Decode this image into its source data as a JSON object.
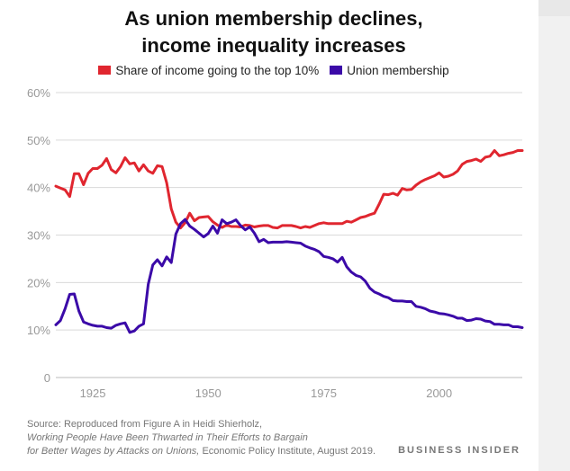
{
  "chart_data": {
    "type": "line",
    "title_line1": "As union membership declines,",
    "title_line2": "income inequality increases",
    "xlabel": "",
    "ylabel": "",
    "xlim": [
      1917,
      2018
    ],
    "ylim": [
      0,
      60
    ],
    "y_ticks": [
      0,
      10,
      20,
      30,
      40,
      50,
      60
    ],
    "y_tick_labels": [
      "0",
      "10%",
      "20%",
      "30%",
      "40%",
      "50%",
      "60%"
    ],
    "x_ticks": [
      1925,
      1950,
      1975,
      2000
    ],
    "x_tick_labels": [
      "1925",
      "1950",
      "1975",
      "2000"
    ],
    "grid": true,
    "legend_position": "top",
    "series": [
      {
        "name": "Share of income going to the top 10%",
        "color": "#e0262f",
        "x": [
          1917,
          1918,
          1919,
          1920,
          1921,
          1922,
          1923,
          1924,
          1925,
          1926,
          1927,
          1928,
          1929,
          1930,
          1931,
          1932,
          1933,
          1934,
          1935,
          1936,
          1937,
          1938,
          1939,
          1940,
          1941,
          1942,
          1943,
          1944,
          1945,
          1946,
          1947,
          1948,
          1949,
          1950,
          1951,
          1952,
          1953,
          1954,
          1955,
          1956,
          1957,
          1958,
          1959,
          1960,
          1961,
          1962,
          1963,
          1964,
          1965,
          1966,
          1967,
          1968,
          1969,
          1970,
          1971,
          1972,
          1973,
          1974,
          1975,
          1976,
          1977,
          1978,
          1979,
          1980,
          1981,
          1982,
          1983,
          1984,
          1985,
          1986,
          1987,
          1988,
          1989,
          1990,
          1991,
          1992,
          1993,
          1994,
          1995,
          1996,
          1997,
          1998,
          1999,
          2000,
          2001,
          2002,
          2003,
          2004,
          2005,
          2006,
          2007,
          2008,
          2009,
          2010,
          2011,
          2012,
          2013,
          2014,
          2015,
          2016,
          2017,
          2018
        ],
        "values": [
          40.3,
          39.9,
          39.5,
          38.1,
          42.9,
          42.9,
          40.6,
          43.0,
          44.0,
          44.0,
          44.7,
          46.1,
          43.8,
          43.1,
          44.4,
          46.3,
          45.0,
          45.2,
          43.5,
          44.8,
          43.5,
          43.0,
          44.6,
          44.4,
          41.0,
          35.5,
          32.7,
          31.5,
          32.6,
          34.6,
          33.0,
          33.7,
          33.8,
          33.9,
          32.8,
          32.1,
          31.6,
          32.1,
          31.8,
          31.8,
          31.7,
          32.1,
          32.0,
          31.7,
          31.9,
          32.0,
          32.0,
          31.6,
          31.5,
          32.0,
          32.0,
          32.0,
          31.8,
          31.5,
          31.8,
          31.6,
          32.0,
          32.4,
          32.6,
          32.4,
          32.4,
          32.4,
          32.4,
          32.9,
          32.7,
          33.2,
          33.7,
          33.9,
          34.3,
          34.6,
          36.5,
          38.6,
          38.5,
          38.8,
          38.4,
          39.8,
          39.5,
          39.6,
          40.5,
          41.2,
          41.7,
          42.1,
          42.5,
          43.1,
          42.2,
          42.4,
          42.8,
          43.5,
          44.9,
          45.5,
          45.7,
          46.0,
          45.5,
          46.4,
          46.6,
          47.8,
          46.7,
          46.9,
          47.2,
          47.4,
          47.8,
          47.8
        ]
      },
      {
        "name": "Union membership",
        "color": "#3b0aa8",
        "x": [
          1917,
          1918,
          1919,
          1920,
          1921,
          1922,
          1923,
          1924,
          1925,
          1926,
          1927,
          1928,
          1929,
          1930,
          1931,
          1932,
          1933,
          1934,
          1935,
          1936,
          1937,
          1938,
          1939,
          1940,
          1941,
          1942,
          1943,
          1944,
          1945,
          1946,
          1947,
          1948,
          1949,
          1950,
          1951,
          1952,
          1953,
          1954,
          1955,
          1956,
          1957,
          1958,
          1959,
          1960,
          1961,
          1962,
          1963,
          1964,
          1965,
          1966,
          1967,
          1968,
          1969,
          1970,
          1971,
          1972,
          1973,
          1974,
          1975,
          1976,
          1977,
          1978,
          1979,
          1980,
          1981,
          1982,
          1983,
          1984,
          1985,
          1986,
          1987,
          1988,
          1989,
          1990,
          1991,
          1992,
          1993,
          1994,
          1995,
          1996,
          1997,
          1998,
          1999,
          2000,
          2001,
          2002,
          2003,
          2004,
          2005,
          2006,
          2007,
          2008,
          2009,
          2010,
          2011,
          2012,
          2013,
          2014,
          2015,
          2016,
          2017,
          2018
        ],
        "values": [
          11.1,
          12.0,
          14.5,
          17.5,
          17.6,
          14.0,
          11.7,
          11.3,
          11.0,
          10.8,
          10.8,
          10.5,
          10.4,
          11.0,
          11.3,
          11.5,
          9.5,
          9.8,
          10.8,
          11.3,
          19.6,
          23.7,
          24.8,
          23.5,
          25.4,
          24.2,
          30.2,
          32.4,
          33.3,
          31.9,
          31.2,
          30.4,
          29.6,
          30.3,
          31.9,
          30.4,
          33.2,
          32.4,
          32.7,
          33.2,
          32.0,
          31.1,
          31.7,
          30.4,
          28.6,
          29.1,
          28.4,
          28.5,
          28.5,
          28.5,
          28.6,
          28.5,
          28.4,
          28.3,
          27.7,
          27.3,
          27.0,
          26.5,
          25.5,
          25.3,
          25.0,
          24.3,
          25.3,
          23.3,
          22.2,
          21.5,
          21.2,
          20.3,
          18.8,
          18.0,
          17.6,
          17.1,
          16.8,
          16.2,
          16.1,
          16.1,
          16.0,
          16.0,
          15.0,
          14.8,
          14.5,
          14.0,
          13.8,
          13.5,
          13.4,
          13.2,
          12.9,
          12.5,
          12.5,
          12.0,
          12.1,
          12.4,
          12.3,
          11.9,
          11.8,
          11.2,
          11.2,
          11.1,
          11.1,
          10.7,
          10.7,
          10.5
        ]
      }
    ]
  },
  "legend": {
    "item1": "Share of income going to the top 10%",
    "item2": "Union membership"
  },
  "source": {
    "label": "Source:",
    "text1": "Reproduced from Figure A in Heidi Shierholz,",
    "italic1": "Working People Have Been Thwarted in Their Efforts to Bargain",
    "italic2": "for Better Wages by Attacks on Unions,",
    "text2": "Economic Policy Institute, August 2019."
  },
  "brand": "BUSINESS INSIDER",
  "colors": {
    "income": "#e0262f",
    "union": "#3b0aa8",
    "grid": "#d9d9d9",
    "axis_text": "#999999"
  }
}
